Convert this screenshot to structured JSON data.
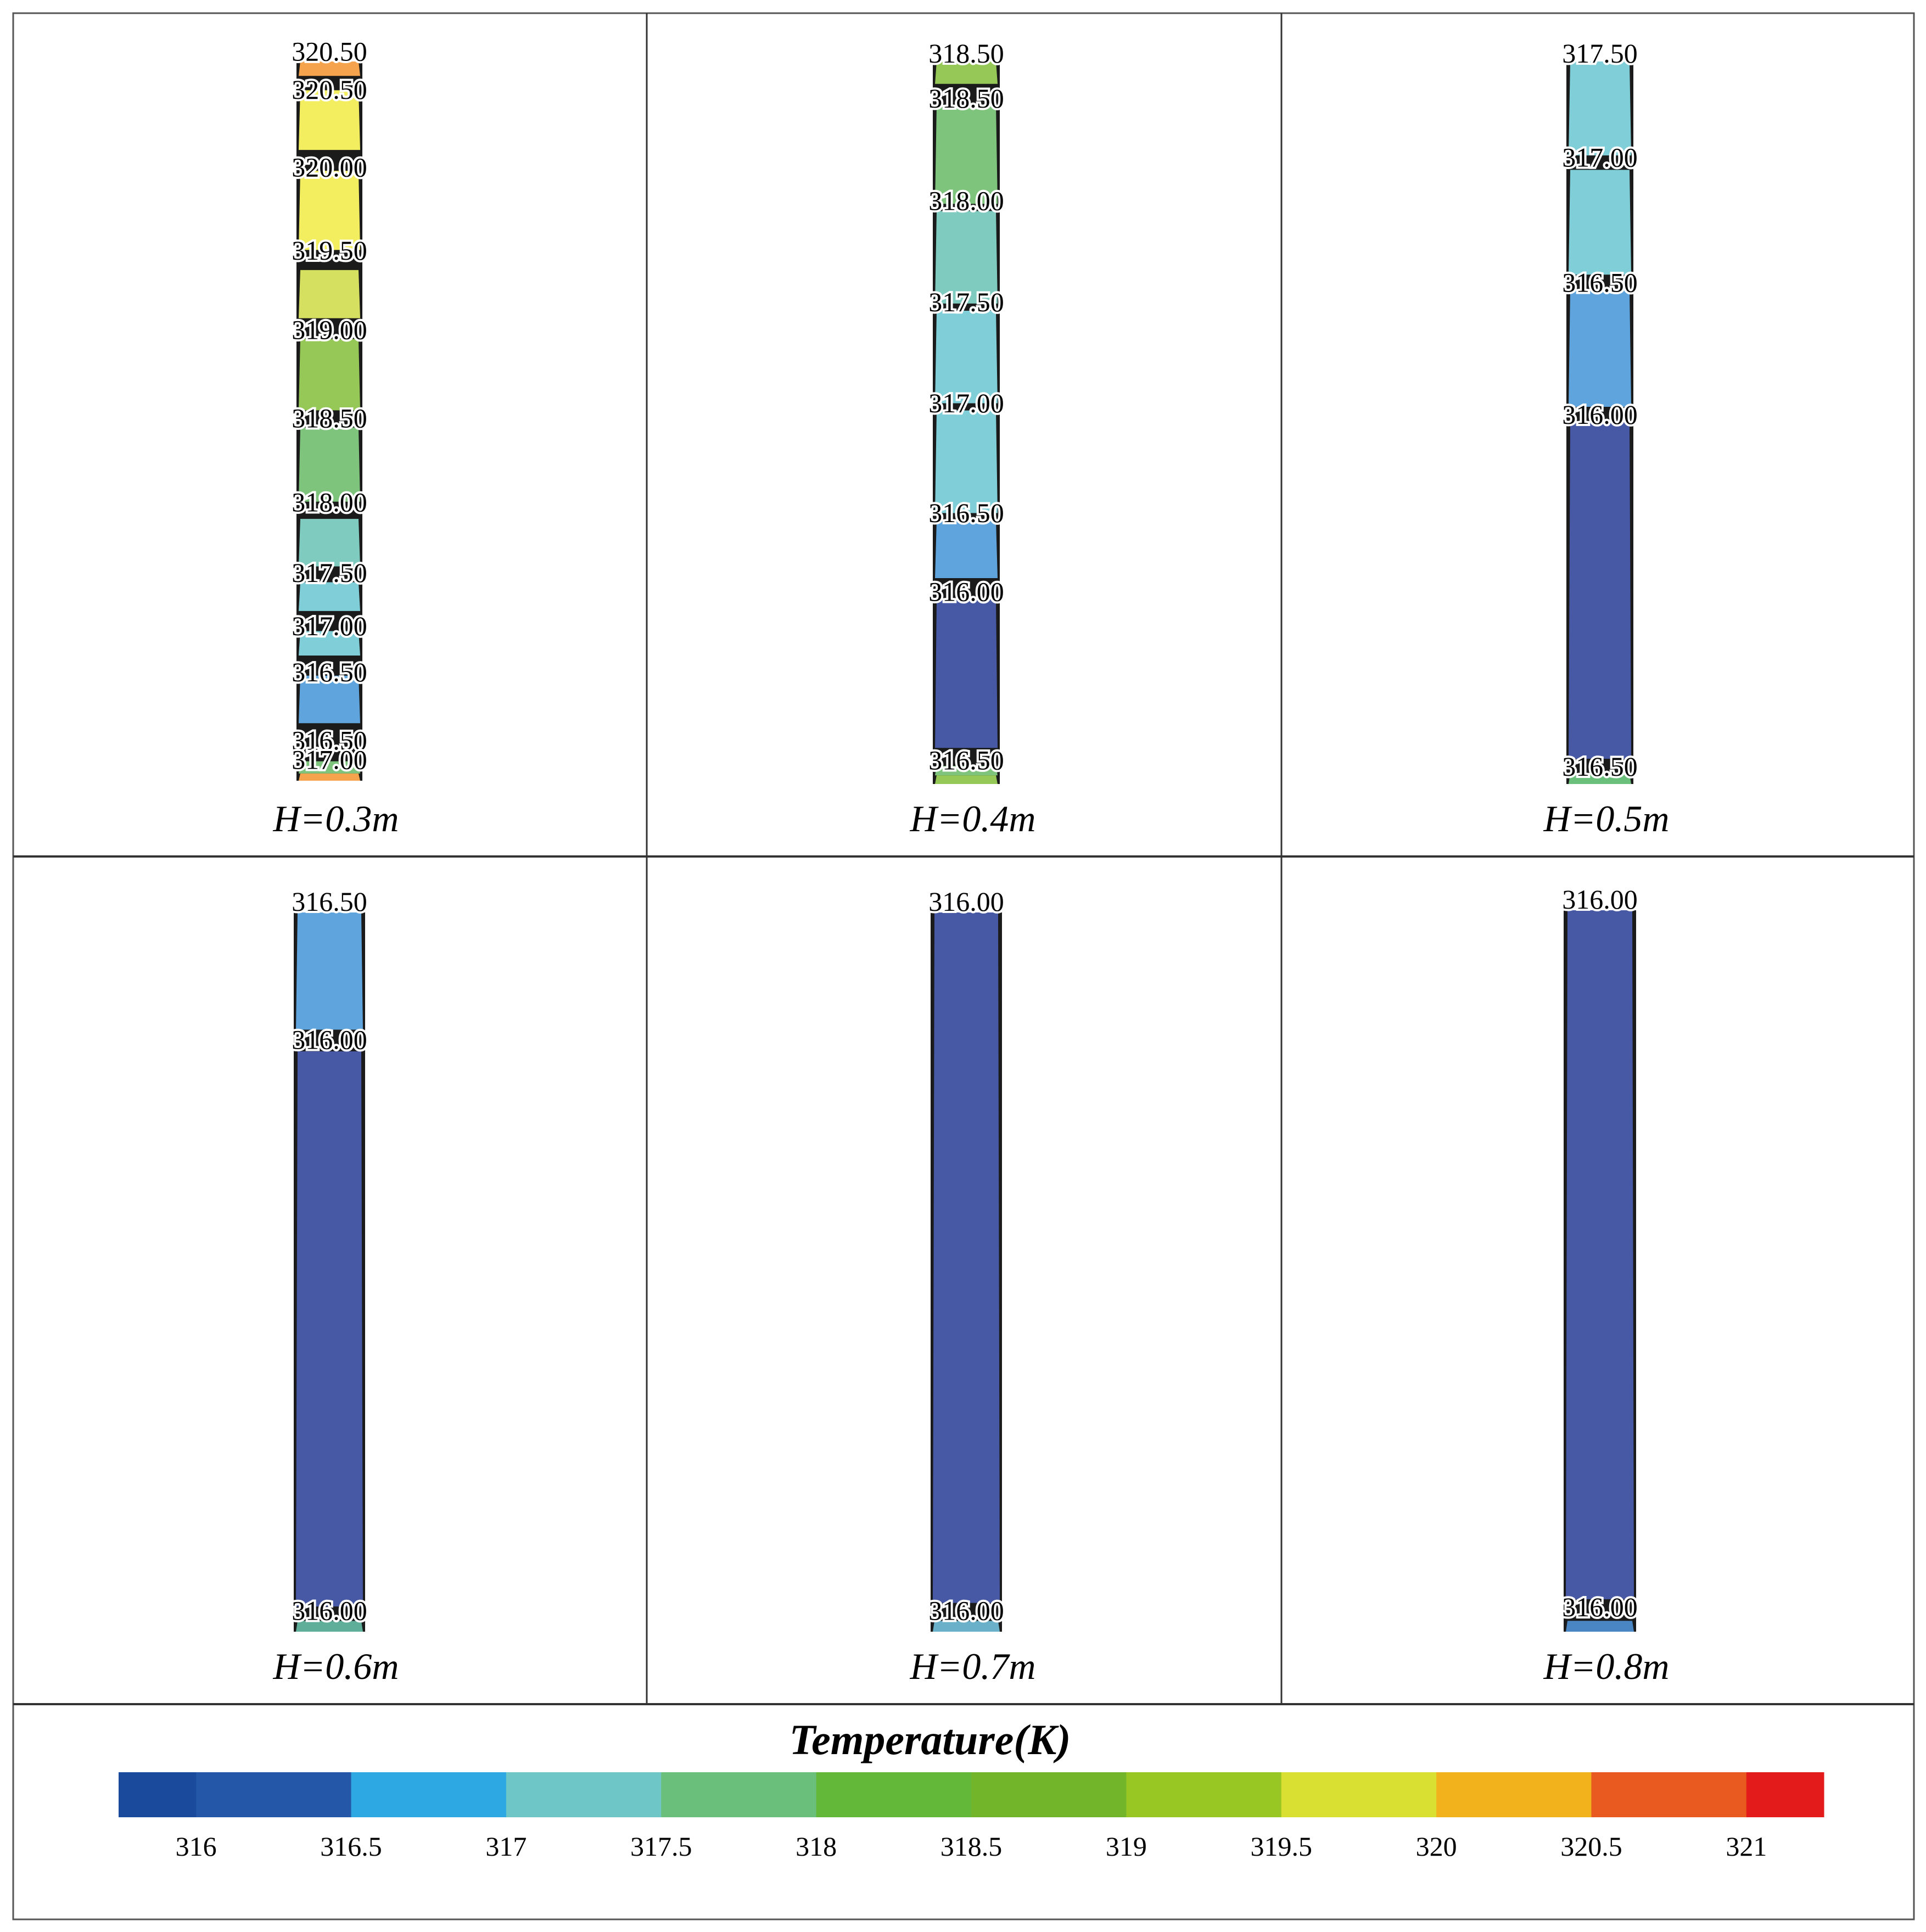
{
  "figure": {
    "legend": {
      "title": "Temperature(K)",
      "ticks": [
        "316",
        "316.5",
        "317",
        "317.5",
        "318",
        "318.5",
        "319",
        "319.5",
        "320",
        "320.5",
        "321"
      ],
      "colors": [
        "#1a4a9c",
        "#2557a8",
        "#2ea8e2",
        "#6ec6c6",
        "#6abf7a",
        "#63b83a",
        "#72b52a",
        "#98c623",
        "#d9e032",
        "#f2b21c",
        "#e85a1f",
        "#e31b1b"
      ]
    },
    "panels": [
      {
        "case_label": "H=0.3m",
        "bands": [
          {
            "from": 0.0,
            "to": 0.02,
            "color": "#f5a34d"
          },
          {
            "from": 0.04,
            "to": 0.123,
            "color": "#f2ee60"
          },
          {
            "from": 0.152,
            "to": 0.262,
            "color": "#f2ee60"
          },
          {
            "from": 0.29,
            "to": 0.357,
            "color": "#d6e060"
          },
          {
            "from": 0.386,
            "to": 0.485,
            "color": "#96c857"
          },
          {
            "from": 0.509,
            "to": 0.612,
            "color": "#7fc47c"
          },
          {
            "from": 0.636,
            "to": 0.702,
            "color": "#80cbc0"
          },
          {
            "from": 0.724,
            "to": 0.764,
            "color": "#80ced8"
          },
          {
            "from": 0.792,
            "to": 0.826,
            "color": "#80ced8"
          },
          {
            "from": 0.854,
            "to": 0.92,
            "color": "#5fa4dc"
          },
          {
            "from": 0.973,
            "to": 0.99,
            "color": "#7fc47c"
          },
          {
            "from": 0.99,
            "to": 1.0,
            "color": "#f5a34d"
          }
        ],
        "contour_labels": [
          {
            "text": "320.50",
            "at": -0.015
          },
          {
            "text": "320.50",
            "at": 0.038
          },
          {
            "text": "320.00",
            "at": 0.146
          },
          {
            "text": "319.50",
            "at": 0.262
          },
          {
            "text": "319.00",
            "at": 0.372
          },
          {
            "text": "318.50",
            "at": 0.495
          },
          {
            "text": "318.00",
            "at": 0.612
          },
          {
            "text": "317.50",
            "at": 0.71
          },
          {
            "text": "317.00",
            "at": 0.784
          },
          {
            "text": "316.50",
            "at": 0.848
          },
          {
            "text": "316.50",
            "at": 0.943
          },
          {
            "text": "317.00",
            "at": 0.97
          }
        ]
      },
      {
        "case_label": "H=0.4m",
        "bands": [
          {
            "from": 0.0,
            "to": 0.031,
            "color": "#96c857"
          },
          {
            "from": 0.06,
            "to": 0.197,
            "color": "#7fc47c"
          },
          {
            "from": 0.207,
            "to": 0.335,
            "color": "#80cbc0"
          },
          {
            "from": 0.345,
            "to": 0.473,
            "color": "#80ced8"
          },
          {
            "from": 0.483,
            "to": 0.625,
            "color": "#80ced8"
          },
          {
            "from": 0.635,
            "to": 0.715,
            "color": "#5fa4dc"
          },
          {
            "from": 0.745,
            "to": 0.95,
            "color": "#4758a4"
          },
          {
            "from": 0.975,
            "to": 0.988,
            "color": "#7fc47c"
          },
          {
            "from": 0.988,
            "to": 1.0,
            "color": "#96c857"
          }
        ],
        "contour_labels": [
          {
            "text": "318.50",
            "at": -0.012
          },
          {
            "text": "318.50",
            "at": 0.05
          },
          {
            "text": "318.00",
            "at": 0.192
          },
          {
            "text": "317.50",
            "at": 0.332
          },
          {
            "text": "317.00",
            "at": 0.472
          },
          {
            "text": "316.50",
            "at": 0.624
          },
          {
            "text": "316.00",
            "at": 0.733
          },
          {
            "text": "316.50",
            "at": 0.966
          }
        ]
      },
      {
        "case_label": "H=0.5m",
        "bands": [
          {
            "from": 0.0,
            "to": 0.13,
            "color": "#80ced8"
          },
          {
            "from": 0.15,
            "to": 0.295,
            "color": "#80ced8"
          },
          {
            "from": 0.315,
            "to": 0.478,
            "color": "#5fa4dc"
          },
          {
            "from": 0.498,
            "to": 0.965,
            "color": "#4758a4"
          },
          {
            "from": 0.985,
            "to": 1.0,
            "color": "#6abf7a"
          }
        ],
        "contour_labels": [
          {
            "text": "317.50",
            "at": -0.012
          },
          {
            "text": "317.00",
            "at": 0.132
          },
          {
            "text": "316.50",
            "at": 0.305
          },
          {
            "text": "316.00",
            "at": 0.488
          },
          {
            "text": "316.50",
            "at": 0.975
          }
        ]
      },
      {
        "case_label": "H=0.6m",
        "bands": [
          {
            "from": 0.0,
            "to": 0.163,
            "color": "#5fa4dc"
          },
          {
            "from": 0.193,
            "to": 0.965,
            "color": "#4758a4"
          },
          {
            "from": 0.985,
            "to": 1.0,
            "color": "#5fae9a"
          }
        ],
        "contour_labels": [
          {
            "text": "316.50",
            "at": -0.016
          },
          {
            "text": "316.00",
            "at": 0.176
          },
          {
            "text": "316.00",
            "at": 0.97
          }
        ]
      },
      {
        "case_label": "H=0.7m",
        "bands": [
          {
            "from": 0.0,
            "to": 0.96,
            "color": "#4758a4"
          },
          {
            "from": 0.985,
            "to": 1.0,
            "color": "#6ab0c8"
          }
        ],
        "contour_labels": [
          {
            "text": "316.00",
            "at": -0.016
          },
          {
            "text": "316.00",
            "at": 0.97
          }
        ]
      },
      {
        "case_label": "H=0.8m",
        "bands": [
          {
            "from": 0.0,
            "to": 0.955,
            "color": "#4758a4"
          },
          {
            "from": 0.985,
            "to": 1.0,
            "color": "#4a86c4"
          }
        ],
        "contour_labels": [
          {
            "text": "316.00",
            "at": -0.016
          },
          {
            "text": "316.00",
            "at": 0.965
          }
        ]
      }
    ]
  }
}
